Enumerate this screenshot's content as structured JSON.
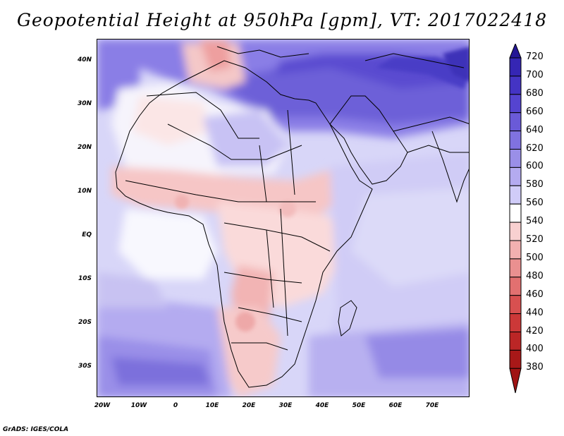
{
  "title": "Geopotential Height at 950hPa [gpm], VT: 2017022418",
  "credit": "GrADS: IGES/COLA",
  "map": {
    "lat_labels": [
      "40N",
      "30N",
      "20N",
      "10N",
      "EQ",
      "10S",
      "20S",
      "30S"
    ],
    "lon_labels": [
      "20W",
      "10W",
      "0",
      "10E",
      "20E",
      "30E",
      "40E",
      "50E",
      "60E",
      "70E"
    ]
  },
  "colorbar": {
    "levels": [
      "720",
      "700",
      "680",
      "660",
      "640",
      "620",
      "600",
      "580",
      "560",
      "540",
      "520",
      "500",
      "480",
      "460",
      "440",
      "420",
      "400",
      "380"
    ],
    "colors": [
      "#2a1aa6",
      "#3526b4",
      "#4434c4",
      "#5544d0",
      "#6a5ad8",
      "#8072e0",
      "#9a8fe8",
      "#b4abf0",
      "#d0ccf8",
      "#ffffff",
      "#f8d0d0",
      "#f2b0b0",
      "#ea9090",
      "#e27070",
      "#d85050",
      "#cc3838",
      "#bb2626",
      "#a81818"
    ]
  }
}
